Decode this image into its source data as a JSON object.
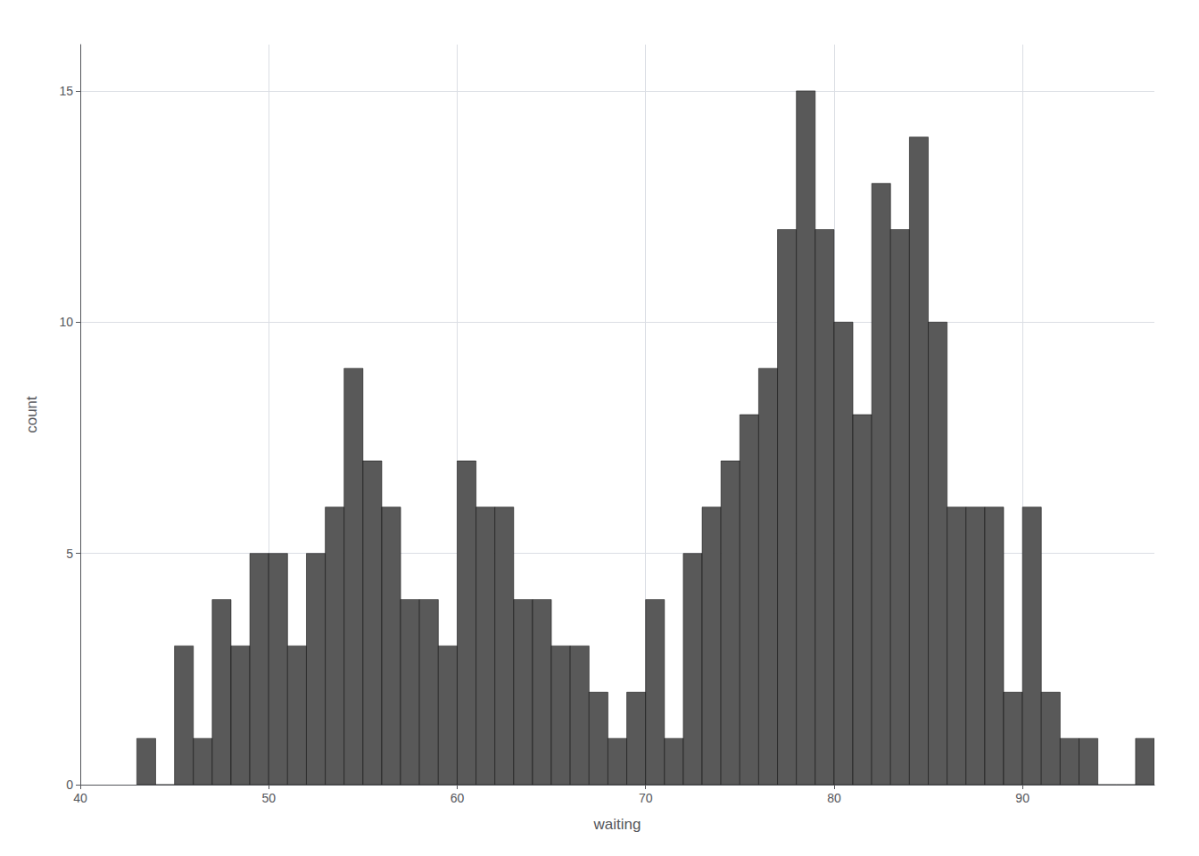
{
  "chart_data": {
    "type": "histogram",
    "bins": [
      43,
      44,
      45,
      46,
      47,
      48,
      49,
      50,
      51,
      52,
      53,
      54,
      55,
      56,
      57,
      58,
      59,
      60,
      61,
      62,
      63,
      64,
      65,
      66,
      67,
      68,
      69,
      70,
      71,
      72,
      73,
      74,
      75,
      76,
      77,
      78,
      79,
      80,
      81,
      82,
      83,
      84,
      85,
      86,
      87,
      88,
      89,
      90,
      91,
      92,
      93,
      94,
      95,
      96,
      97
    ],
    "values": [
      1,
      0,
      3,
      1,
      4,
      3,
      5,
      5,
      3,
      5,
      6,
      9,
      7,
      6,
      4,
      4,
      3,
      7,
      6,
      6,
      4,
      4,
      3,
      3,
      2,
      1,
      2,
      4,
      1,
      5,
      6,
      7,
      8,
      9,
      12,
      15,
      12,
      10,
      8,
      13,
      12,
      14,
      10,
      6,
      6,
      6,
      2,
      6,
      2,
      1,
      1,
      0,
      0,
      1
    ],
    "color": "#595959",
    "xlabel": "waiting",
    "ylabel": "count",
    "xlim": [
      40,
      97
    ],
    "ylim": [
      0,
      16
    ],
    "xticks": [
      40,
      50,
      60,
      70,
      80,
      90
    ],
    "yticks": [
      0,
      5,
      10,
      15
    ],
    "grid": true
  }
}
